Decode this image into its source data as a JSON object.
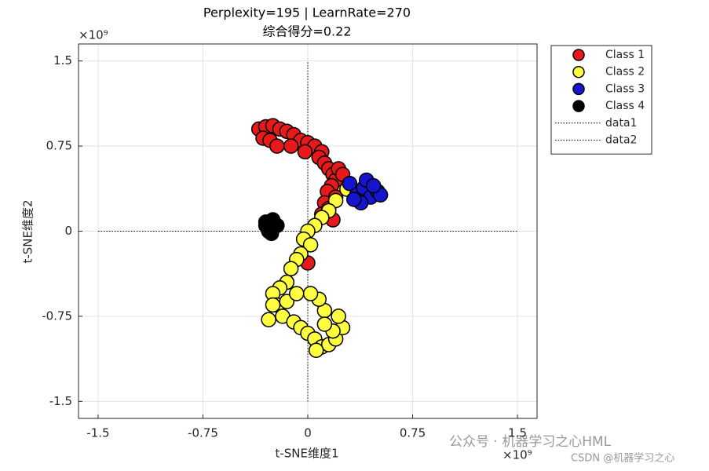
{
  "chart_data": {
    "type": "scatter",
    "title": "Perplexity=195 | LearnRate=270",
    "subtitle": "综合得分=0.22",
    "x_label": "t-SNE维度1",
    "y_label": "t-SNE维度2",
    "x_multiplier": "×10⁹",
    "y_multiplier": "×10⁹",
    "xlim": [
      -1.64,
      1.64
    ],
    "ylim": [
      -1.65,
      1.65
    ],
    "xticks": [
      -1.5,
      -0.75,
      0,
      0.75,
      1.5
    ],
    "yticks": [
      -1.5,
      -0.75,
      0,
      0.75,
      1.5
    ],
    "grid": true,
    "legend": "outside-right",
    "series": [
      {
        "name": "Class 1",
        "color": "#e8191a",
        "x": [
          -0.35,
          -0.3,
          -0.25,
          -0.2,
          -0.15,
          -0.1,
          -0.05,
          0,
          0.05,
          0.1,
          -0.32,
          -0.27,
          -0.22,
          -0.12,
          -0.02,
          0.08,
          0.12,
          0.15,
          0.18,
          0.2,
          0.22,
          0.25,
          0.17,
          0.14,
          0.2,
          0.12,
          0.1,
          0.15,
          0.18,
          0
        ],
        "y": [
          0.9,
          0.92,
          0.93,
          0.9,
          0.88,
          0.85,
          0.8,
          0.78,
          0.75,
          0.7,
          0.82,
          0.8,
          0.75,
          0.75,
          0.7,
          0.65,
          0.6,
          0.55,
          0.5,
          0.45,
          0.55,
          0.5,
          0.4,
          0.35,
          0.3,
          0.25,
          0.15,
          0.2,
          0.1,
          -0.28
        ]
      },
      {
        "name": "Class 2",
        "color": "#ffff40",
        "x": [
          0.28,
          0.2,
          0.15,
          0.1,
          0.05,
          0,
          -0.03,
          0.02,
          -0.05,
          -0.08,
          -0.12,
          -0.15,
          -0.2,
          -0.25,
          -0.22,
          -0.28,
          -0.18,
          -0.1,
          -0.05,
          0,
          0.05,
          0.1,
          0.15,
          0.2,
          0.25,
          0.22,
          0.12,
          0.08,
          0.18,
          -0.15,
          -0.25,
          0.02,
          0.12,
          0.06,
          -0.08
        ],
        "y": [
          0.37,
          0.27,
          0.18,
          0.12,
          0.05,
          0.0,
          -0.07,
          -0.12,
          -0.2,
          -0.25,
          -0.33,
          -0.45,
          -0.5,
          -0.55,
          -0.65,
          -0.78,
          -0.75,
          -0.8,
          -0.85,
          -0.9,
          -0.95,
          -1.02,
          -1.0,
          -0.95,
          -0.85,
          -0.75,
          -0.7,
          -0.6,
          -0.88,
          -0.62,
          -0.65,
          -0.55,
          -0.82,
          -1.05,
          -0.55
        ]
      },
      {
        "name": "Class 3",
        "color": "#1515d0",
        "x": [
          0.3,
          0.35,
          0.4,
          0.45,
          0.5,
          0.38,
          0.42,
          0.52,
          0.33,
          0.47
        ],
        "y": [
          0.42,
          0.32,
          0.38,
          0.3,
          0.35,
          0.25,
          0.45,
          0.32,
          0.28,
          0.4
        ]
      },
      {
        "name": "Class 4",
        "color": "#000000",
        "x": [
          -0.3,
          -0.25,
          -0.28,
          -0.22,
          -0.26,
          -0.3
        ],
        "y": [
          0.05,
          0.1,
          0.0,
          0.05,
          -0.02,
          0.08
        ]
      }
    ],
    "reference_lines": [
      {
        "name": "data1",
        "x": [
          0,
          0
        ],
        "y": [
          -1.5,
          1.5
        ]
      },
      {
        "name": "data2",
        "x": [
          -1.5,
          1.5
        ],
        "y": [
          0,
          0
        ]
      }
    ],
    "watermark": "公众号 · 机器学习之心HML",
    "watermark2": "CSDN @机器学习之心"
  }
}
